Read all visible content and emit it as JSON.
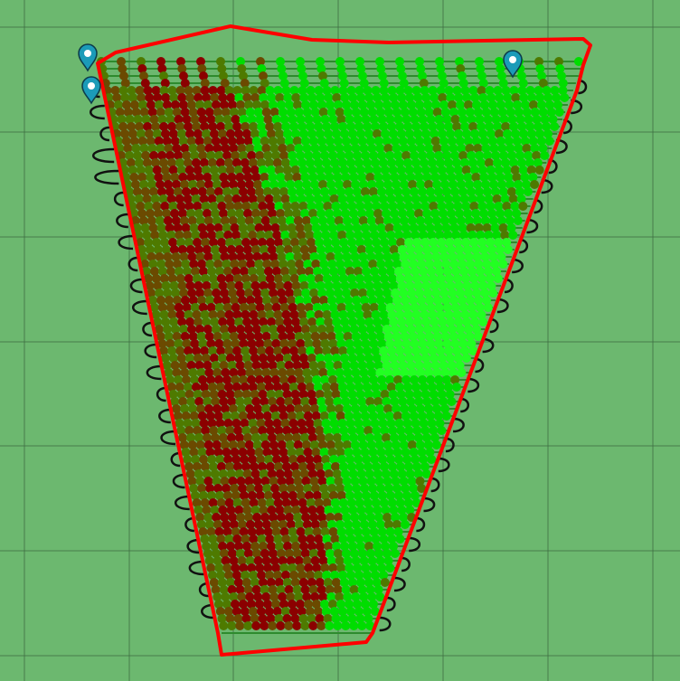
{
  "map": {
    "background_color": "#6cb86f",
    "grid_color": "#3f6e43",
    "boundary_color": "#ff0000",
    "turn_path_color": "#111111",
    "row_line_color": "#2e8b2e"
  },
  "legend_colors": {
    "low": "#8b0000",
    "mid": "#6b4a00",
    "olive": "#4e7a00",
    "high": "#00dd00",
    "peak": "#22ff22"
  },
  "markers": [
    {
      "name": "location-marker-1",
      "icon": "map-pin-icon",
      "color": "#1b9bb8"
    },
    {
      "name": "location-marker-2",
      "icon": "map-pin-icon",
      "color": "#1b9bb8"
    },
    {
      "name": "location-marker-3",
      "icon": "map-pin-icon",
      "color": "#1b9bb8"
    }
  ]
}
